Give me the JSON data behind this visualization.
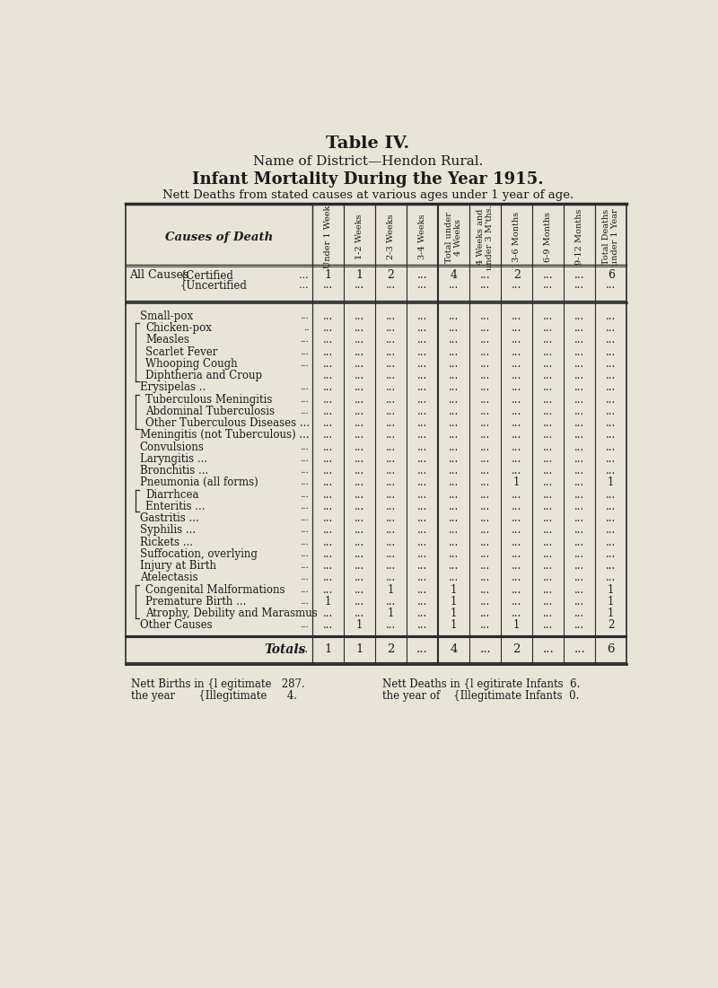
{
  "title": "Table IV.",
  "subtitle1": "Name of District—Hendon Rural.",
  "subtitle2": "Infant Mortality During the Year 1915.",
  "subtitle3": "Nett Deaths from stated causes at various ages under 1 year of age.",
  "col_headers": [
    "Under 1 Week",
    "1-2 Weeks",
    "2-3 Weeks",
    "3-4 Weeks",
    "Total under\n4 Weeks",
    "4 Weeks and\nunder 3 M'ths.",
    "3-6 Months",
    "6-9 Months",
    "9-12 Months",
    "Total Deaths\nunder 1 Year"
  ],
  "row_label_header": "Causes of Death",
  "cert_data": [
    "1",
    "1",
    "2",
    "...",
    "4",
    "...",
    "2",
    "...",
    "...",
    "6"
  ],
  "uncert_data": [
    "...",
    "...",
    "...",
    "...",
    "...",
    "...",
    "...",
    "...",
    "...",
    "..."
  ],
  "detail_rows": [
    {
      "label": "Small-pox",
      "dots_before": "...",
      "data": [
        "...",
        "...",
        "...",
        "...",
        "...",
        "...",
        "...",
        "...",
        "...",
        "..."
      ],
      "bracket": "none",
      "indent": false
    },
    {
      "label": "Chicken-pox",
      "dots_before": "..",
      "data": [
        "...",
        "...",
        "...",
        "...",
        "...",
        "...",
        "...",
        "...",
        "...",
        "..."
      ],
      "bracket": "top",
      "indent": true
    },
    {
      "label": "Measles",
      "dots_before": "...",
      "data": [
        "...",
        "...",
        "...",
        "...",
        "...",
        "...",
        "...",
        "...",
        "...",
        "..."
      ],
      "bracket": "mid",
      "indent": true
    },
    {
      "label": "Scarlet Fever",
      "dots_before": "...",
      "data": [
        "...",
        "...",
        "...",
        "...",
        "...",
        "...",
        "...",
        "...",
        "...",
        "..."
      ],
      "bracket": "mid",
      "indent": true
    },
    {
      "label": "Whooping Cough",
      "dots_before": "...",
      "data": [
        "...",
        "...",
        "...",
        "...",
        "...",
        "...",
        "...",
        "...",
        "...",
        "..."
      ],
      "bracket": "mid",
      "indent": true
    },
    {
      "label": "Diphtheria and Croup",
      "dots_before": "",
      "data": [
        "...",
        "...",
        "...",
        "...",
        "...",
        "...",
        "...",
        "...",
        "...",
        "..."
      ],
      "bracket": "bot",
      "indent": true
    },
    {
      "label": "Erysipelas ..",
      "dots_before": "...",
      "data": [
        "...",
        "...",
        "...",
        "...",
        "...",
        "...",
        "...",
        "...",
        "...",
        "..."
      ],
      "bracket": "none",
      "indent": false
    },
    {
      "label": "Tuberculous Meningitis",
      "dots_before": "...",
      "data": [
        "...",
        "...",
        "...",
        "...",
        "...",
        "...",
        "...",
        "...",
        "...",
        "..."
      ],
      "bracket": "top",
      "indent": true
    },
    {
      "label": "Abdominal Tuberculosis",
      "dots_before": "...",
      "data": [
        "...",
        "...",
        "...",
        "...",
        "...",
        "...",
        "...",
        "...",
        "...",
        "..."
      ],
      "bracket": "mid",
      "indent": true
    },
    {
      "label": "Other Tuberculous Diseases ...",
      "dots_before": "",
      "data": [
        "...",
        "...",
        "...",
        "...",
        "...",
        "...",
        "...",
        "...",
        "...",
        "..."
      ],
      "bracket": "bot",
      "indent": true
    },
    {
      "label": "Meningitis (not Tuberculous) ...",
      "dots_before": "",
      "data": [
        "...",
        "...",
        "...",
        "...",
        "...",
        "...",
        "...",
        "...",
        "...",
        "..."
      ],
      "bracket": "none",
      "indent": false
    },
    {
      "label": "Convulsions",
      "dots_before": "...",
      "data": [
        "...",
        "...",
        "...",
        "...",
        "...",
        "...",
        "...",
        "...",
        "...",
        "..."
      ],
      "bracket": "none",
      "indent": false
    },
    {
      "label": "Laryngitis ...",
      "dots_before": "...",
      "data": [
        "...",
        "...",
        "...",
        "...",
        "...",
        "...",
        "...",
        "...",
        "...",
        "..."
      ],
      "bracket": "none",
      "indent": false
    },
    {
      "label": "Bronchitis ...",
      "dots_before": "...",
      "data": [
        "...",
        "...",
        "...",
        "...",
        "...",
        "...",
        "...",
        "...",
        "...",
        "..."
      ],
      "bracket": "none",
      "indent": false
    },
    {
      "label": "Pneumonia (all forms)",
      "dots_before": "...",
      "data": [
        "...",
        "...",
        "...",
        "...",
        "...",
        "...",
        "1",
        "...",
        "...",
        "1"
      ],
      "bracket": "none",
      "indent": false
    },
    {
      "label": "Diarrhcea",
      "dots_before": "...",
      "data": [
        "...",
        "...",
        "...",
        "...",
        "...",
        "...",
        "...",
        "...",
        "...",
        "..."
      ],
      "bracket": "top",
      "indent": true
    },
    {
      "label": "Enteritis ...",
      "dots_before": "...",
      "data": [
        "...",
        "...",
        "...",
        "...",
        "...",
        "...",
        "...",
        "...",
        "...",
        "..."
      ],
      "bracket": "bot",
      "indent": true
    },
    {
      "label": "Gastritis ...",
      "dots_before": "...",
      "data": [
        "...",
        "...",
        "...",
        "...",
        "...",
        "...",
        "...",
        "...",
        "...",
        "..."
      ],
      "bracket": "none",
      "indent": false
    },
    {
      "label": "Syphilis ...",
      "dots_before": "...",
      "data": [
        "...",
        "...",
        "...",
        "...",
        "...",
        "...",
        "...",
        "...",
        "...",
        "..."
      ],
      "bracket": "none",
      "indent": false
    },
    {
      "label": "Rickets ...",
      "dots_before": "...",
      "data": [
        "...",
        "...",
        "...",
        "...",
        "...",
        "...",
        "...",
        "...",
        "...",
        "..."
      ],
      "bracket": "none",
      "indent": false
    },
    {
      "label": "Suffocation, overlying",
      "dots_before": "...",
      "data": [
        "...",
        "...",
        "...",
        "...",
        "...",
        "...",
        "...",
        "...",
        "...",
        "..."
      ],
      "bracket": "none",
      "indent": false
    },
    {
      "label": "Injury at Birth",
      "dots_before": "...",
      "data": [
        "...",
        "...",
        "...",
        "...",
        "...",
        "...",
        "...",
        "...",
        "...",
        "..."
      ],
      "bracket": "none",
      "indent": false
    },
    {
      "label": "Atelectasis",
      "dots_before": "...",
      "data": [
        "...",
        "...",
        "...",
        "...",
        "...",
        "...",
        "...",
        "...",
        "...",
        "..."
      ],
      "bracket": "none",
      "indent": false
    },
    {
      "label": "Congenital Malformations",
      "dots_before": "...",
      "data": [
        "...",
        "...",
        "1",
        "...",
        "1",
        "...",
        "...",
        "...",
        "...",
        "1"
      ],
      "bracket": "top",
      "indent": true
    },
    {
      "label": "Premature Birth ...",
      "dots_before": "...",
      "data": [
        "1",
        "...",
        "...",
        "...",
        "1",
        "...",
        "...",
        "...",
        "...",
        "1"
      ],
      "bracket": "mid",
      "indent": true
    },
    {
      "label": "Atrophy, Debility and Marasmus",
      "dots_before": "",
      "data": [
        "...",
        "...",
        "1",
        "...",
        "1",
        "...",
        "...",
        "...",
        "...",
        "1"
      ],
      "bracket": "bot",
      "indent": true
    },
    {
      "label": "Other Causes",
      "dots_before": "...",
      "data": [
        "...",
        "1",
        "...",
        "...",
        "1",
        "...",
        "1",
        "...",
        "...",
        "2"
      ],
      "bracket": "none",
      "indent": false
    }
  ],
  "totals_row": [
    "1",
    "1",
    "2",
    "...",
    "4",
    "...",
    "2",
    "...",
    "...",
    "6"
  ],
  "bg_color": "#e8e4d8",
  "text_color": "#1a1a1a",
  "line_color": "#2a2a2a"
}
